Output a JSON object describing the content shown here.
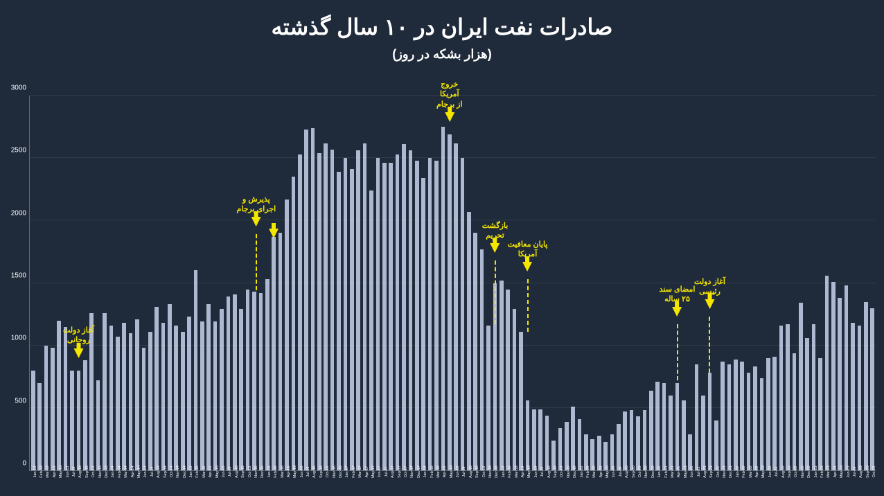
{
  "title": "صادرات نفت ایران در ۱۰ سال گذشته",
  "subtitle": "(هزار بشکه در روز)",
  "chart": {
    "type": "bar",
    "ylim": [
      0,
      3000
    ],
    "ytick_step": 500,
    "bar_color": "#aeb8d0",
    "background_color": "#1f2a3a",
    "grid_color": "rgba(255,255,255,0.08)",
    "accent_color": "#f5e600",
    "title_fontsize": 32,
    "subtitle_fontsize": 18,
    "ylabel_fontsize": 10,
    "xlabel_fontsize": 5.5,
    "series": [
      {
        "label": "Jan-13",
        "value": 800
      },
      {
        "label": "Feb-13",
        "value": 700
      },
      {
        "label": "Mar-13",
        "value": 1000
      },
      {
        "label": "Apr-13",
        "value": 980
      },
      {
        "label": "May-13",
        "value": 1200
      },
      {
        "label": "Jun-13",
        "value": 1150
      },
      {
        "label": "Jul-13",
        "value": 800
      },
      {
        "label": "Aug-13",
        "value": 800
      },
      {
        "label": "Sep-13",
        "value": 880
      },
      {
        "label": "Oct-13",
        "value": 1260
      },
      {
        "label": "Nov-13",
        "value": 720
      },
      {
        "label": "Dec-13",
        "value": 1260
      },
      {
        "label": "Jan-14",
        "value": 1160
      },
      {
        "label": "Feb-14",
        "value": 1070
      },
      {
        "label": "Mar-14",
        "value": 1180
      },
      {
        "label": "Apr-14",
        "value": 1100
      },
      {
        "label": "May-14",
        "value": 1210
      },
      {
        "label": "Jun-14",
        "value": 980
      },
      {
        "label": "Jul-14",
        "value": 1110
      },
      {
        "label": "Aug-14",
        "value": 1310
      },
      {
        "label": "Sep-14",
        "value": 1180
      },
      {
        "label": "Oct-14",
        "value": 1330
      },
      {
        "label": "Nov-14",
        "value": 1160
      },
      {
        "label": "Dec-14",
        "value": 1110
      },
      {
        "label": "Jan-15",
        "value": 1230
      },
      {
        "label": "Feb-15",
        "value": 1600
      },
      {
        "label": "Mar-15",
        "value": 1190
      },
      {
        "label": "Apr-15",
        "value": 1330
      },
      {
        "label": "May-15",
        "value": 1190
      },
      {
        "label": "Jun-15",
        "value": 1290
      },
      {
        "label": "Jul-15",
        "value": 1390
      },
      {
        "label": "Aug-15",
        "value": 1410
      },
      {
        "label": "Sep-15",
        "value": 1290
      },
      {
        "label": "Oct-15",
        "value": 1450
      },
      {
        "label": "Nov-15",
        "value": 1430
      },
      {
        "label": "Dec-15",
        "value": 1420
      },
      {
        "label": "Jan-16",
        "value": 1530
      },
      {
        "label": "Feb-16",
        "value": 1870
      },
      {
        "label": "Mar-16",
        "value": 1900
      },
      {
        "label": "Apr-16",
        "value": 2170
      },
      {
        "label": "May-16",
        "value": 2350
      },
      {
        "label": "Jun-16",
        "value": 2530
      },
      {
        "label": "Jul-16",
        "value": 2730
      },
      {
        "label": "Aug-16",
        "value": 2740
      },
      {
        "label": "Sep-16",
        "value": 2540
      },
      {
        "label": "Oct-16",
        "value": 2620
      },
      {
        "label": "Nov-16",
        "value": 2570
      },
      {
        "label": "Dec-16",
        "value": 2390
      },
      {
        "label": "Jan-17",
        "value": 2500
      },
      {
        "label": "Feb-17",
        "value": 2410
      },
      {
        "label": "Mar-17",
        "value": 2560
      },
      {
        "label": "Apr-17",
        "value": 2620
      },
      {
        "label": "May-17",
        "value": 2240
      },
      {
        "label": "Jun-17",
        "value": 2500
      },
      {
        "label": "Jul-17",
        "value": 2460
      },
      {
        "label": "Aug-17",
        "value": 2460
      },
      {
        "label": "Sep-17",
        "value": 2530
      },
      {
        "label": "Oct-17",
        "value": 2610
      },
      {
        "label": "Nov-17",
        "value": 2560
      },
      {
        "label": "Dec-17",
        "value": 2480
      },
      {
        "label": "Jan-18",
        "value": 2340
      },
      {
        "label": "Feb-18",
        "value": 2500
      },
      {
        "label": "Mar-18",
        "value": 2480
      },
      {
        "label": "Apr-18",
        "value": 2750
      },
      {
        "label": "May-18",
        "value": 2690
      },
      {
        "label": "Jun-18",
        "value": 2620
      },
      {
        "label": "Jul-18",
        "value": 2500
      },
      {
        "label": "Aug-18",
        "value": 2070
      },
      {
        "label": "Sep-18",
        "value": 1900
      },
      {
        "label": "Oct-18",
        "value": 1770
      },
      {
        "label": "Nov-18",
        "value": 1160
      },
      {
        "label": "Dec-18",
        "value": 1500
      },
      {
        "label": "Jan-19",
        "value": 1520
      },
      {
        "label": "Feb-19",
        "value": 1450
      },
      {
        "label": "Mar-19",
        "value": 1290
      },
      {
        "label": "Apr-19",
        "value": 1110
      },
      {
        "label": "May-19",
        "value": 560
      },
      {
        "label": "Jun-19",
        "value": 490
      },
      {
        "label": "Jul-19",
        "value": 490
      },
      {
        "label": "Aug-19",
        "value": 440
      },
      {
        "label": "Sep-19",
        "value": 240
      },
      {
        "label": "Oct-19",
        "value": 340
      },
      {
        "label": "Nov-19",
        "value": 390
      },
      {
        "label": "Dec-19",
        "value": 510
      },
      {
        "label": "Jan-20",
        "value": 410
      },
      {
        "label": "Feb-20",
        "value": 290
      },
      {
        "label": "Mar-20",
        "value": 250
      },
      {
        "label": "Apr-20",
        "value": 280
      },
      {
        "label": "May-20",
        "value": 230
      },
      {
        "label": "Jun-20",
        "value": 290
      },
      {
        "label": "Jul-20",
        "value": 370
      },
      {
        "label": "Aug-20",
        "value": 470
      },
      {
        "label": "Sep-20",
        "value": 480
      },
      {
        "label": "Oct-20",
        "value": 430
      },
      {
        "label": "Nov-20",
        "value": 480
      },
      {
        "label": "Dec-20",
        "value": 640
      },
      {
        "label": "Jan-21",
        "value": 710
      },
      {
        "label": "Feb-21",
        "value": 700
      },
      {
        "label": "Mar-21",
        "value": 600
      },
      {
        "label": "Apr-21",
        "value": 700
      },
      {
        "label": "May-21",
        "value": 560
      },
      {
        "label": "Jun-21",
        "value": 290
      },
      {
        "label": "Jul-21",
        "value": 850
      },
      {
        "label": "Aug-21",
        "value": 600
      },
      {
        "label": "Sep-21",
        "value": 780
      },
      {
        "label": "Oct-21",
        "value": 400
      },
      {
        "label": "Nov-21",
        "value": 870
      },
      {
        "label": "Dec-21",
        "value": 850
      },
      {
        "label": "Jan-22",
        "value": 890
      },
      {
        "label": "Feb-22",
        "value": 870
      },
      {
        "label": "Mar-22",
        "value": 780
      },
      {
        "label": "Apr-22",
        "value": 830
      },
      {
        "label": "May-22",
        "value": 740
      },
      {
        "label": "Jun-22",
        "value": 900
      },
      {
        "label": "Jul-22",
        "value": 910
      },
      {
        "label": "Aug-22",
        "value": 1160
      },
      {
        "label": "Sep-22",
        "value": 1170
      },
      {
        "label": "Oct-22",
        "value": 940
      },
      {
        "label": "Nov-22",
        "value": 1340
      },
      {
        "label": "Dec-22",
        "value": 1060
      },
      {
        "label": "Jan-23",
        "value": 1170
      },
      {
        "label": "Feb-23",
        "value": 900
      },
      {
        "label": "Mar-23",
        "value": 1560
      },
      {
        "label": "Apr-23",
        "value": 1510
      },
      {
        "label": "May-23",
        "value": 1380
      },
      {
        "label": "Jun-23",
        "value": 1480
      },
      {
        "label": "Jul-23",
        "value": 1180
      },
      {
        "label": "Aug-23",
        "value": 1160
      },
      {
        "label": "Sep-23",
        "value": 1350
      },
      {
        "label": "Oct-23",
        "value": 1300
      }
    ],
    "annotations": [
      {
        "index": 7,
        "text": "آغاز دولت\nروحانی",
        "arrow_bottom_pct": 30,
        "dash_to_pct": 0
      },
      {
        "index": 35,
        "text": "پذیرش و\nاجرای برجام",
        "arrow_bottom_pct": 65,
        "dash_to_pct": 48,
        "offset_pct": -0.7
      },
      {
        "index": 37,
        "text": "",
        "arrow_bottom_pct": 62,
        "dash_to_pct": 0,
        "extra_arrow_only": true
      },
      {
        "index": 64,
        "text": "خروج\nآمریکا\nاز برجام",
        "arrow_bottom_pct": 93,
        "dash_to_pct": 0
      },
      {
        "index": 71,
        "text": "بازگشت\nتحریم",
        "arrow_bottom_pct": 58,
        "dash_to_pct": 39
      },
      {
        "index": 76,
        "text": "پایان معافیت\nآمریکا",
        "arrow_bottom_pct": 53,
        "dash_to_pct": 37
      },
      {
        "index": 99,
        "text": "امضای سند\n۲۵ ساله",
        "arrow_bottom_pct": 41,
        "dash_to_pct": 24
      },
      {
        "index": 104,
        "text": "آغاز دولت\nرئیسی",
        "arrow_bottom_pct": 43,
        "dash_to_pct": 26
      }
    ]
  }
}
